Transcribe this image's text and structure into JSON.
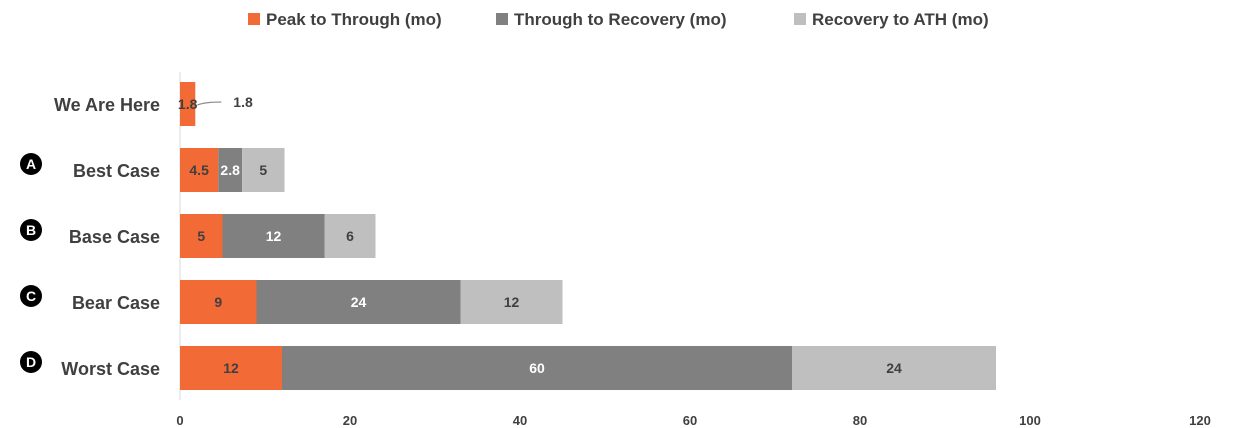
{
  "chart_data": {
    "type": "bar",
    "orientation": "horizontal",
    "stacked": true,
    "title": "",
    "xlabel": "",
    "ylabel": "",
    "xlim": [
      0,
      120
    ],
    "x_ticks": [
      0,
      20,
      40,
      60,
      80,
      100,
      120
    ],
    "grid": false,
    "legend_position": "top",
    "categories": [
      "We Are Here",
      "Best Case",
      "Base Case",
      "Bear Case",
      "Worst Case"
    ],
    "badges": [
      "",
      "A",
      "B",
      "C",
      "D"
    ],
    "series": [
      {
        "name": "Peak to Through (mo)",
        "color": "#F26A35",
        "values": [
          1.8,
          4.5,
          5,
          9,
          12
        ]
      },
      {
        "name": "Through to Recovery (mo)",
        "color": "#808080",
        "values": [
          0,
          2.8,
          12,
          24,
          60
        ]
      },
      {
        "name": "Recovery to ATH (mo)",
        "color": "#BFBFBF",
        "values": [
          0,
          5,
          6,
          12,
          24
        ]
      }
    ],
    "data_labels": [
      [
        "1.8",
        "",
        ""
      ],
      [
        "4.5",
        "2.8",
        "5"
      ],
      [
        "5",
        "12",
        "6"
      ],
      [
        "9",
        "24",
        "12"
      ],
      [
        "12",
        "60",
        "24"
      ]
    ],
    "callout_label": "1.8"
  }
}
